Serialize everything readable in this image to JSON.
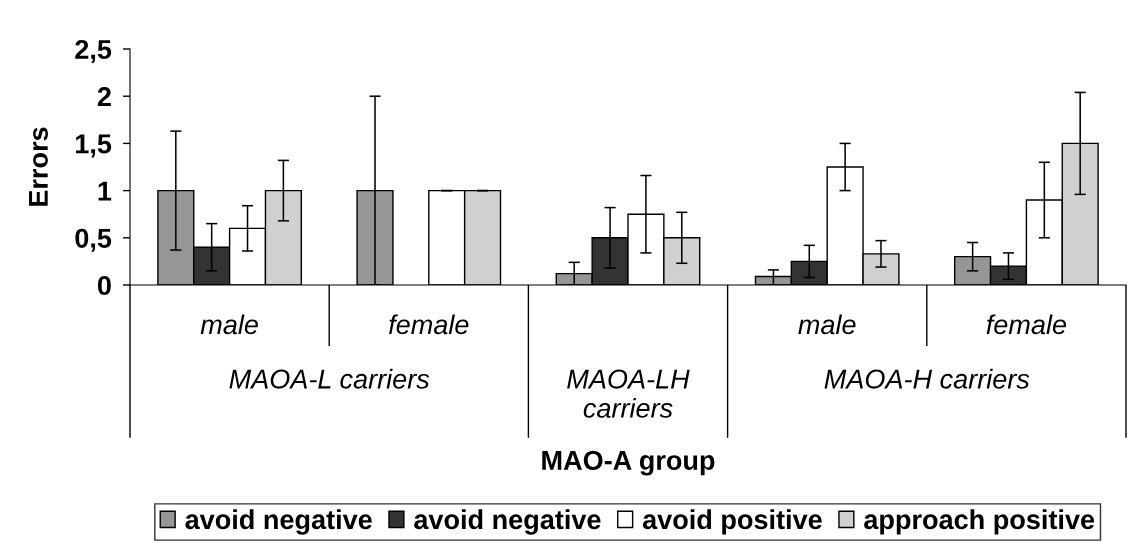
{
  "chart_data": {
    "type": "bar",
    "xlabel": "MAO-A group",
    "ylabel": "Errors",
    "categories": [
      "male",
      "female",
      null,
      "male",
      "female"
    ],
    "annotations": [
      "MAOA-L carriers",
      "MAOA-LH carriers",
      "MAOA-H carriers"
    ],
    "series": [
      {
        "name": "avoid negative",
        "color": "#969696",
        "values": [
          1.0,
          1.0,
          0.12,
          0.09,
          0.3
        ],
        "errors": [
          0.63,
          1.0,
          0.12,
          [
            0,
            0.16
          ],
          0.15
        ]
      },
      {
        "name": "avoid negative",
        "color": "#333333",
        "values": [
          0.4,
          null,
          0.5,
          0.25,
          0.2
        ],
        "errors": [
          0.25,
          null,
          0.32,
          0.17,
          0.14
        ]
      },
      {
        "name": "avoid positive",
        "color": "#ffffff",
        "values": [
          0.6,
          1.0,
          0.75,
          1.25,
          0.9
        ],
        "errors": [
          0.24,
          0,
          0.41,
          0.25,
          0.4
        ]
      },
      {
        "name": "approach positive",
        "color": "#d0d0d0",
        "values": [
          1.0,
          1.0,
          0.5,
          0.33,
          1.5
        ],
        "errors": [
          0.32,
          0,
          0.27,
          0.14,
          0.54
        ]
      }
    ],
    "ylim": [
      0,
      2.5
    ],
    "yticks": [
      0,
      {
        "value": 0.5,
        "label": "0,5"
      },
      1,
      {
        "value": 1.5,
        "label": "1,5"
      },
      2,
      {
        "value": 2.5,
        "label": "2,5"
      }
    ],
    "legend": "bottom"
  }
}
